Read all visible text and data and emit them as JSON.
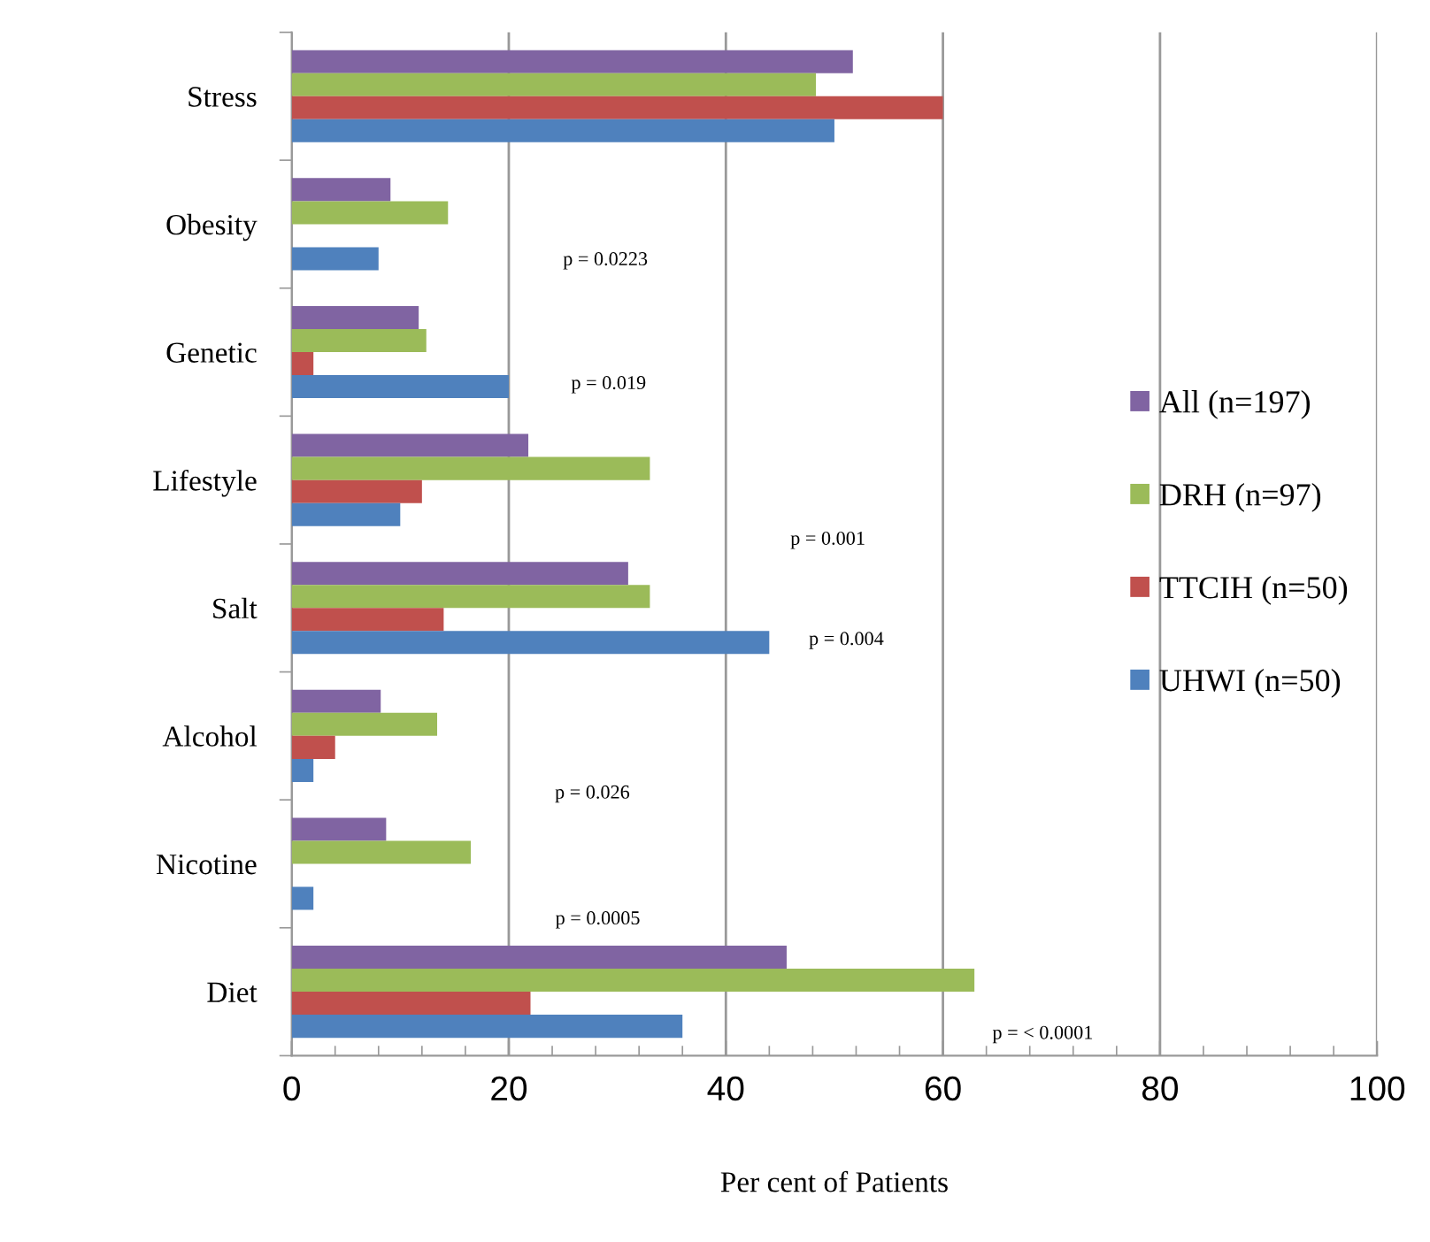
{
  "chart_data": {
    "type": "bar",
    "orientation": "horizontal",
    "xlabel": "Per cent of Patients",
    "categories": [
      "Stress",
      "Obesity",
      "Genetic",
      "Lifestyle",
      "Salt",
      "Alcohol",
      "Nicotine",
      "Diet"
    ],
    "series": [
      {
        "name": "All (n=197)",
        "color": "#8064a2",
        "values": [
          51.7,
          9.1,
          11.7,
          21.8,
          31,
          8.2,
          8.7,
          45.6
        ]
      },
      {
        "name": "DRH (n=97)",
        "color": "#9bbb59",
        "values": [
          48.3,
          14.4,
          12.4,
          33,
          33,
          13.4,
          16.5,
          62.9
        ]
      },
      {
        "name": "TTCIH (n=50)",
        "color": "#c0504d",
        "values": [
          60,
          0,
          2,
          12,
          14,
          4,
          0,
          22
        ]
      },
      {
        "name": "UHWI (n=50)",
        "color": "#4f81bd",
        "values": [
          50,
          8,
          20,
          10,
          44,
          2,
          2,
          36
        ]
      }
    ],
    "xlim": [
      0,
      100
    ],
    "xticks": [
      0,
      20,
      40,
      60,
      80,
      100
    ],
    "grid": "x",
    "legend": "right",
    "annotations": [
      "p = 0.0223",
      "p = 0.019",
      "p = 0.001",
      "p = 0.004",
      "p = 0.026",
      "p = 0.0005",
      "p = < 0.0001"
    ]
  }
}
